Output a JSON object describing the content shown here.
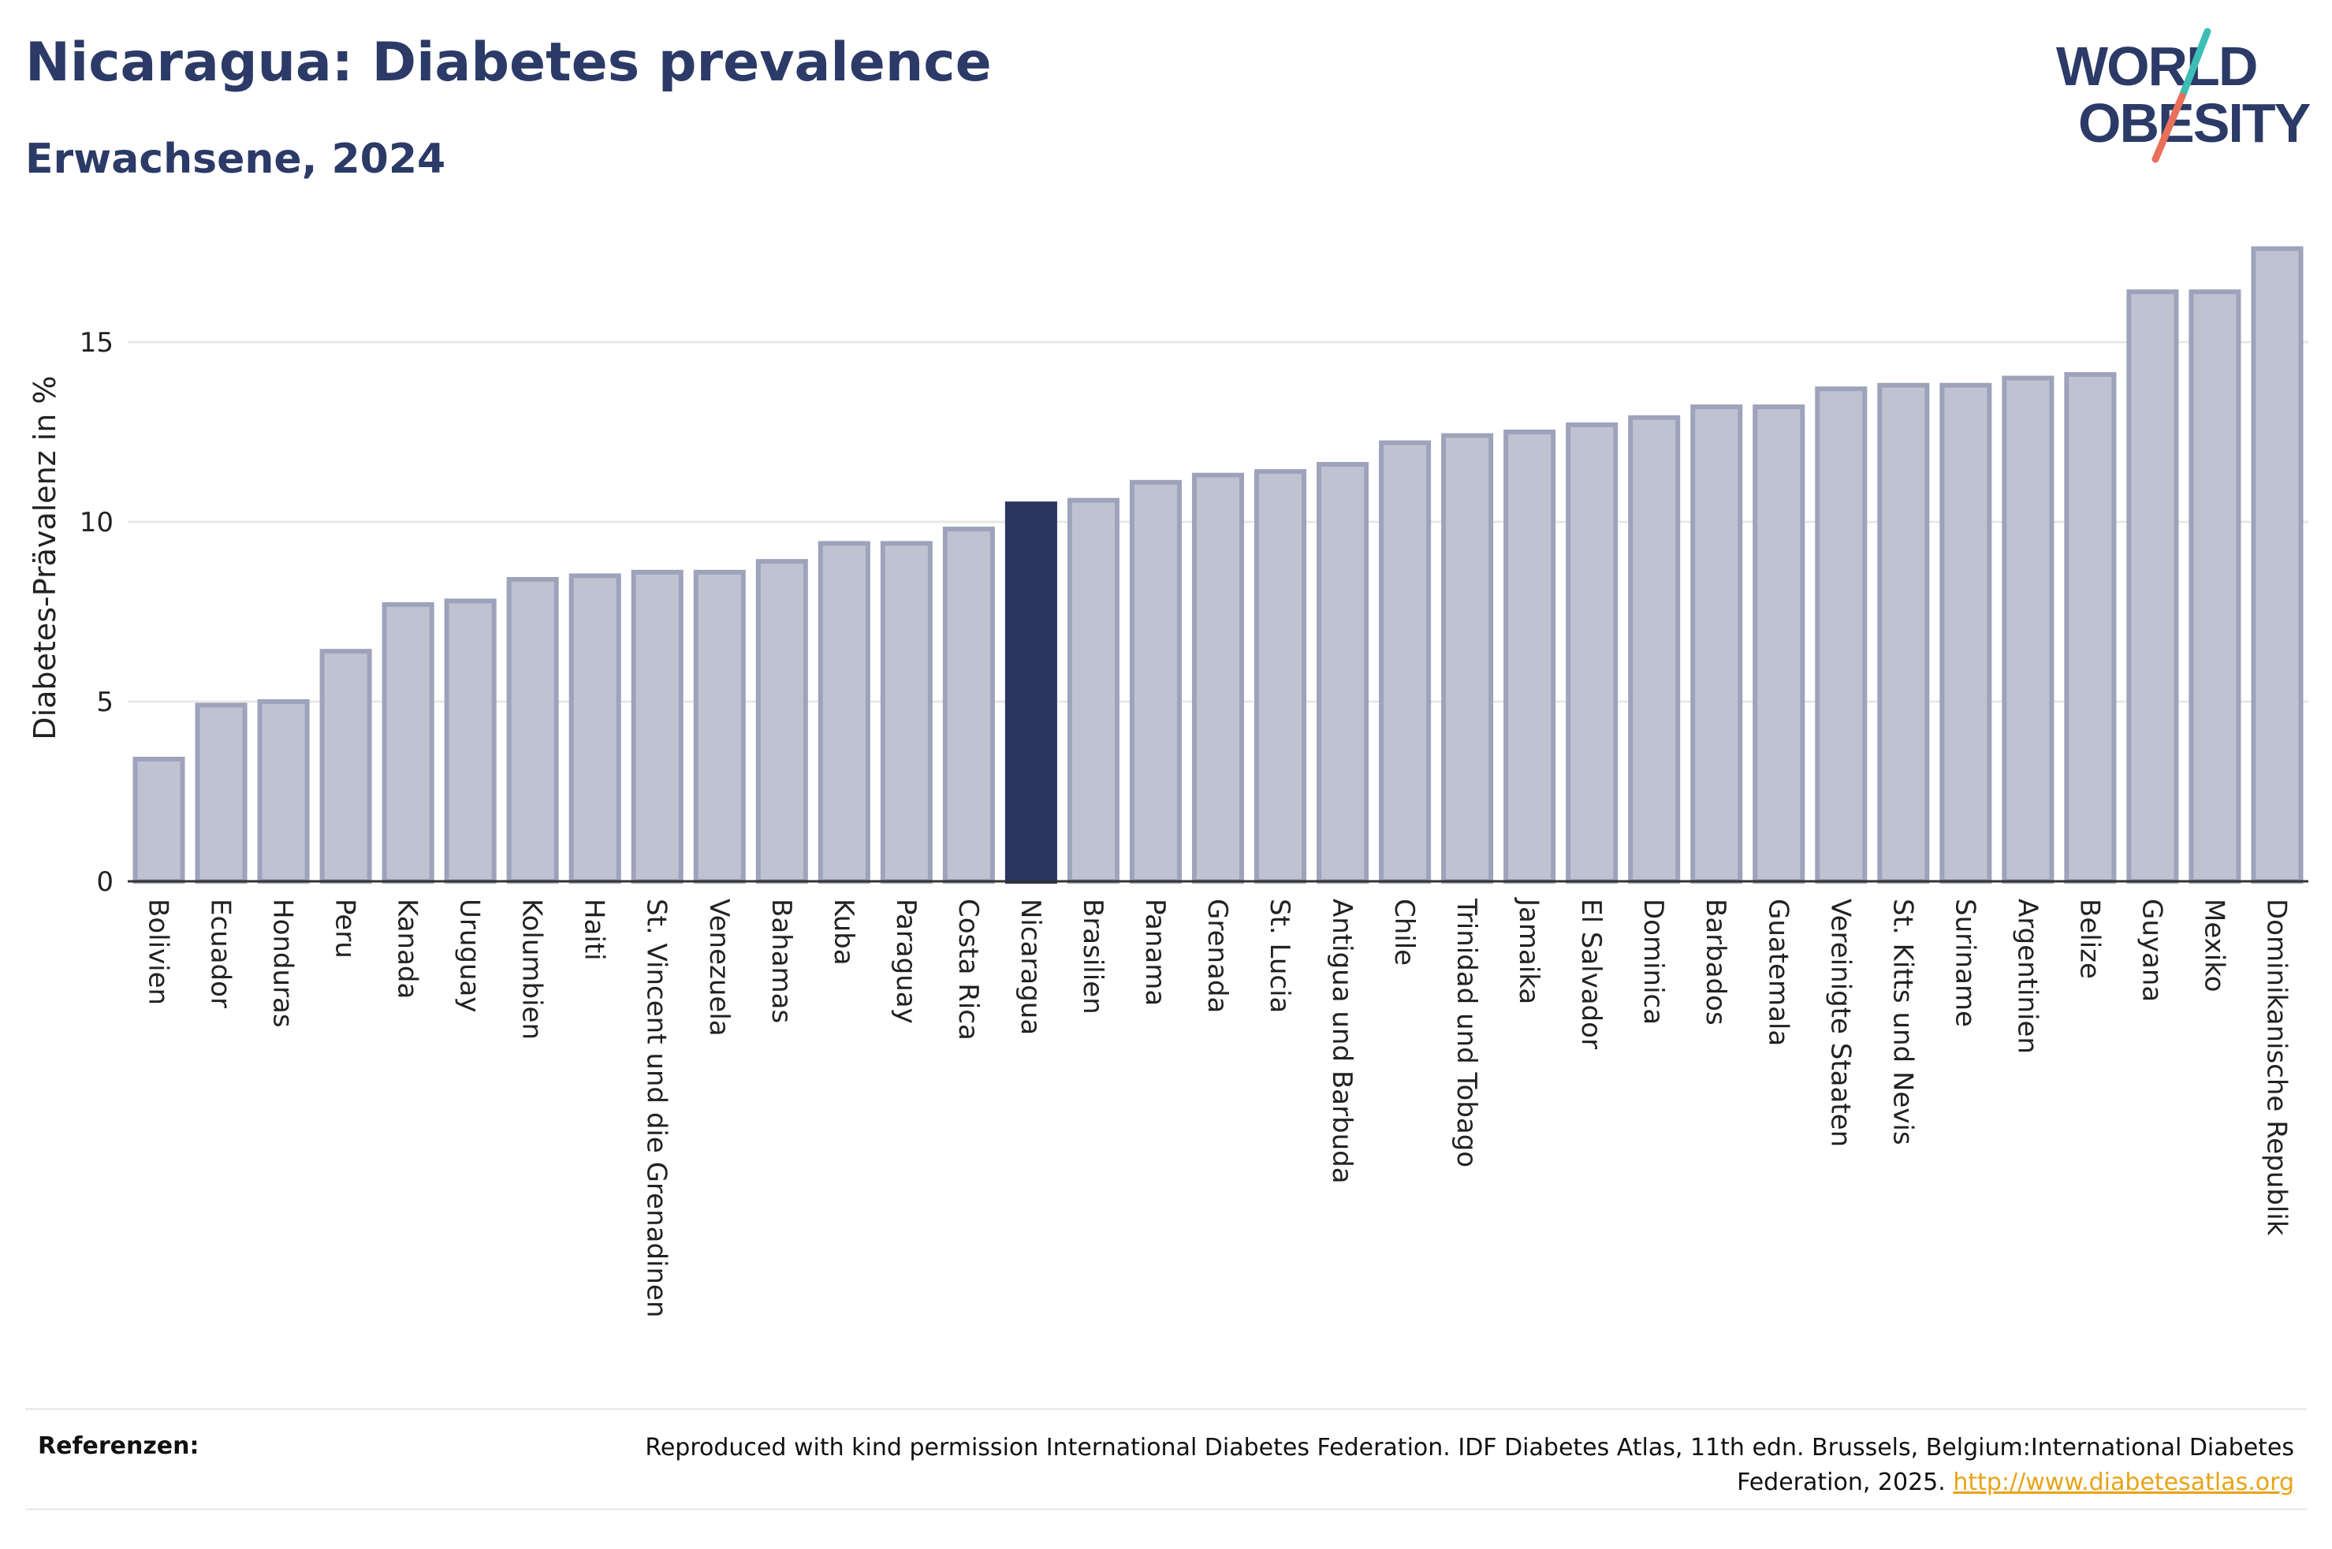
{
  "header": {
    "title": "Nicaragua: Diabetes prevalence",
    "subtitle": "Erwachsene, 2024"
  },
  "logo": {
    "line1": "WORLD",
    "line2": "OBESITY",
    "colors": {
      "text": "#2b3a67",
      "slash_top": "#3dbdb5",
      "slash_bottom": "#e8705a"
    }
  },
  "chart_data": {
    "type": "bar",
    "ylabel": "Diabetes-Prävalenz in %",
    "ylim": [
      0,
      18
    ],
    "yticks": [
      0,
      5,
      10,
      15
    ],
    "grid": true,
    "highlight": "Nicaragua",
    "colors": {
      "bar": "#bfc3d1",
      "bar_edge": "#9da3bb",
      "highlight": "#2b3560",
      "axis": "#333333",
      "grid": "#e8e8e8"
    },
    "categories": [
      "Bolivien",
      "Ecuador",
      "Honduras",
      "Peru",
      "Kanada",
      "Uruguay",
      "Kolumbien",
      "Haiti",
      "St. Vincent und die Grenadinen",
      "Venezuela",
      "Bahamas",
      "Kuba",
      "Paraguay",
      "Costa Rica",
      "Nicaragua",
      "Brasilien",
      "Panama",
      "Grenada",
      "St. Lucia",
      "Antigua und Barbuda",
      "Chile",
      "Trinidad und Tobago",
      "Jamaika",
      "El Salvador",
      "Dominica",
      "Barbados",
      "Guatemala",
      "Vereinigte Staaten",
      "St. Kitts und Nevis",
      "Suriname",
      "Argentinien",
      "Belize",
      "Guyana",
      "Mexiko",
      "Dominikanische Republik"
    ],
    "values": [
      3.4,
      4.9,
      5.0,
      6.4,
      7.7,
      7.8,
      8.4,
      8.5,
      8.6,
      8.6,
      8.9,
      9.4,
      9.4,
      9.8,
      10.5,
      10.6,
      11.1,
      11.3,
      11.4,
      11.6,
      12.2,
      12.4,
      12.5,
      12.7,
      12.9,
      13.2,
      13.2,
      13.7,
      13.8,
      13.8,
      14.0,
      14.1,
      16.4,
      16.4,
      17.6
    ]
  },
  "references": {
    "label": "Referenzen:",
    "text": "Reproduced with kind permission International Diabetes Federation. IDF Diabetes Atlas, 11th edn. Brussels, Belgium:International Diabetes Federation, 2025.",
    "link": "http://www.diabetesatlas.org"
  }
}
